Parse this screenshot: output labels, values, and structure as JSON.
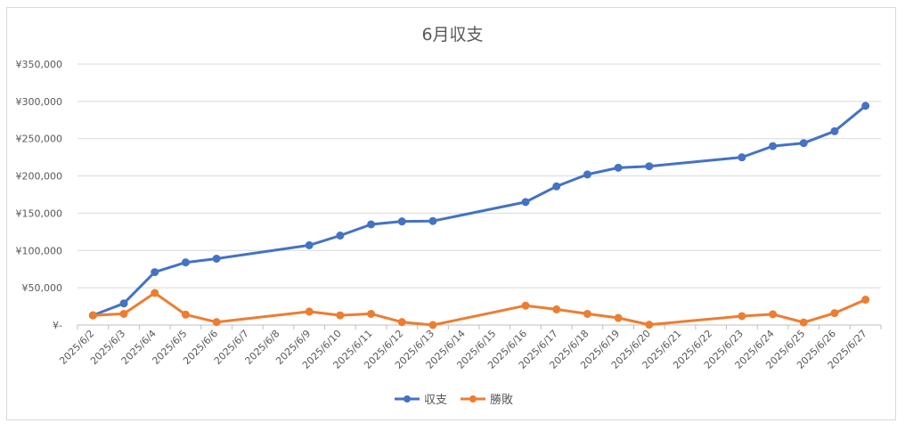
{
  "chart_data": {
    "type": "line",
    "title": "6月収支",
    "categories": [
      "2025/6/2",
      "2025/6/3",
      "2025/6/4",
      "2025/6/5",
      "2025/6/6",
      "2025/6/7",
      "2025/6/8",
      "2025/6/9",
      "2025/6/10",
      "2025/6/11",
      "2025/6/12",
      "2025/6/13",
      "2025/6/14",
      "2025/6/15",
      "2025/6/16",
      "2025/6/17",
      "2025/6/18",
      "2025/6/19",
      "2025/6/20",
      "2025/6/21",
      "2025/6/22",
      "2025/6/23",
      "2025/6/24",
      "2025/6/25",
      "2025/6/26",
      "2025/6/27"
    ],
    "series": [
      {
        "name": "収支",
        "color": "#4472c4",
        "values": [
          13000,
          29000,
          71000,
          84000,
          89000,
          null,
          null,
          107000,
          120000,
          135000,
          139000,
          139500,
          null,
          null,
          165000,
          186000,
          202000,
          211000,
          213000,
          null,
          null,
          225000,
          240000,
          244000,
          260000,
          294000
        ]
      },
      {
        "name": "勝敗",
        "color": "#ed7d31",
        "values": [
          13000,
          15000,
          43000,
          14000,
          4000,
          null,
          null,
          18000,
          13000,
          15000,
          4000,
          0,
          null,
          null,
          26000,
          21000,
          15000,
          9500,
          500,
          null,
          null,
          12000,
          14500,
          3500,
          16000,
          34000
        ]
      }
    ],
    "yticks": [
      "¥-",
      "¥50,000",
      "¥100,000",
      "¥150,000",
      "¥200,000",
      "¥250,000",
      "¥300,000",
      "¥350,000"
    ],
    "ylim": [
      0,
      350000
    ],
    "grid": true,
    "legend": "bottom"
  }
}
